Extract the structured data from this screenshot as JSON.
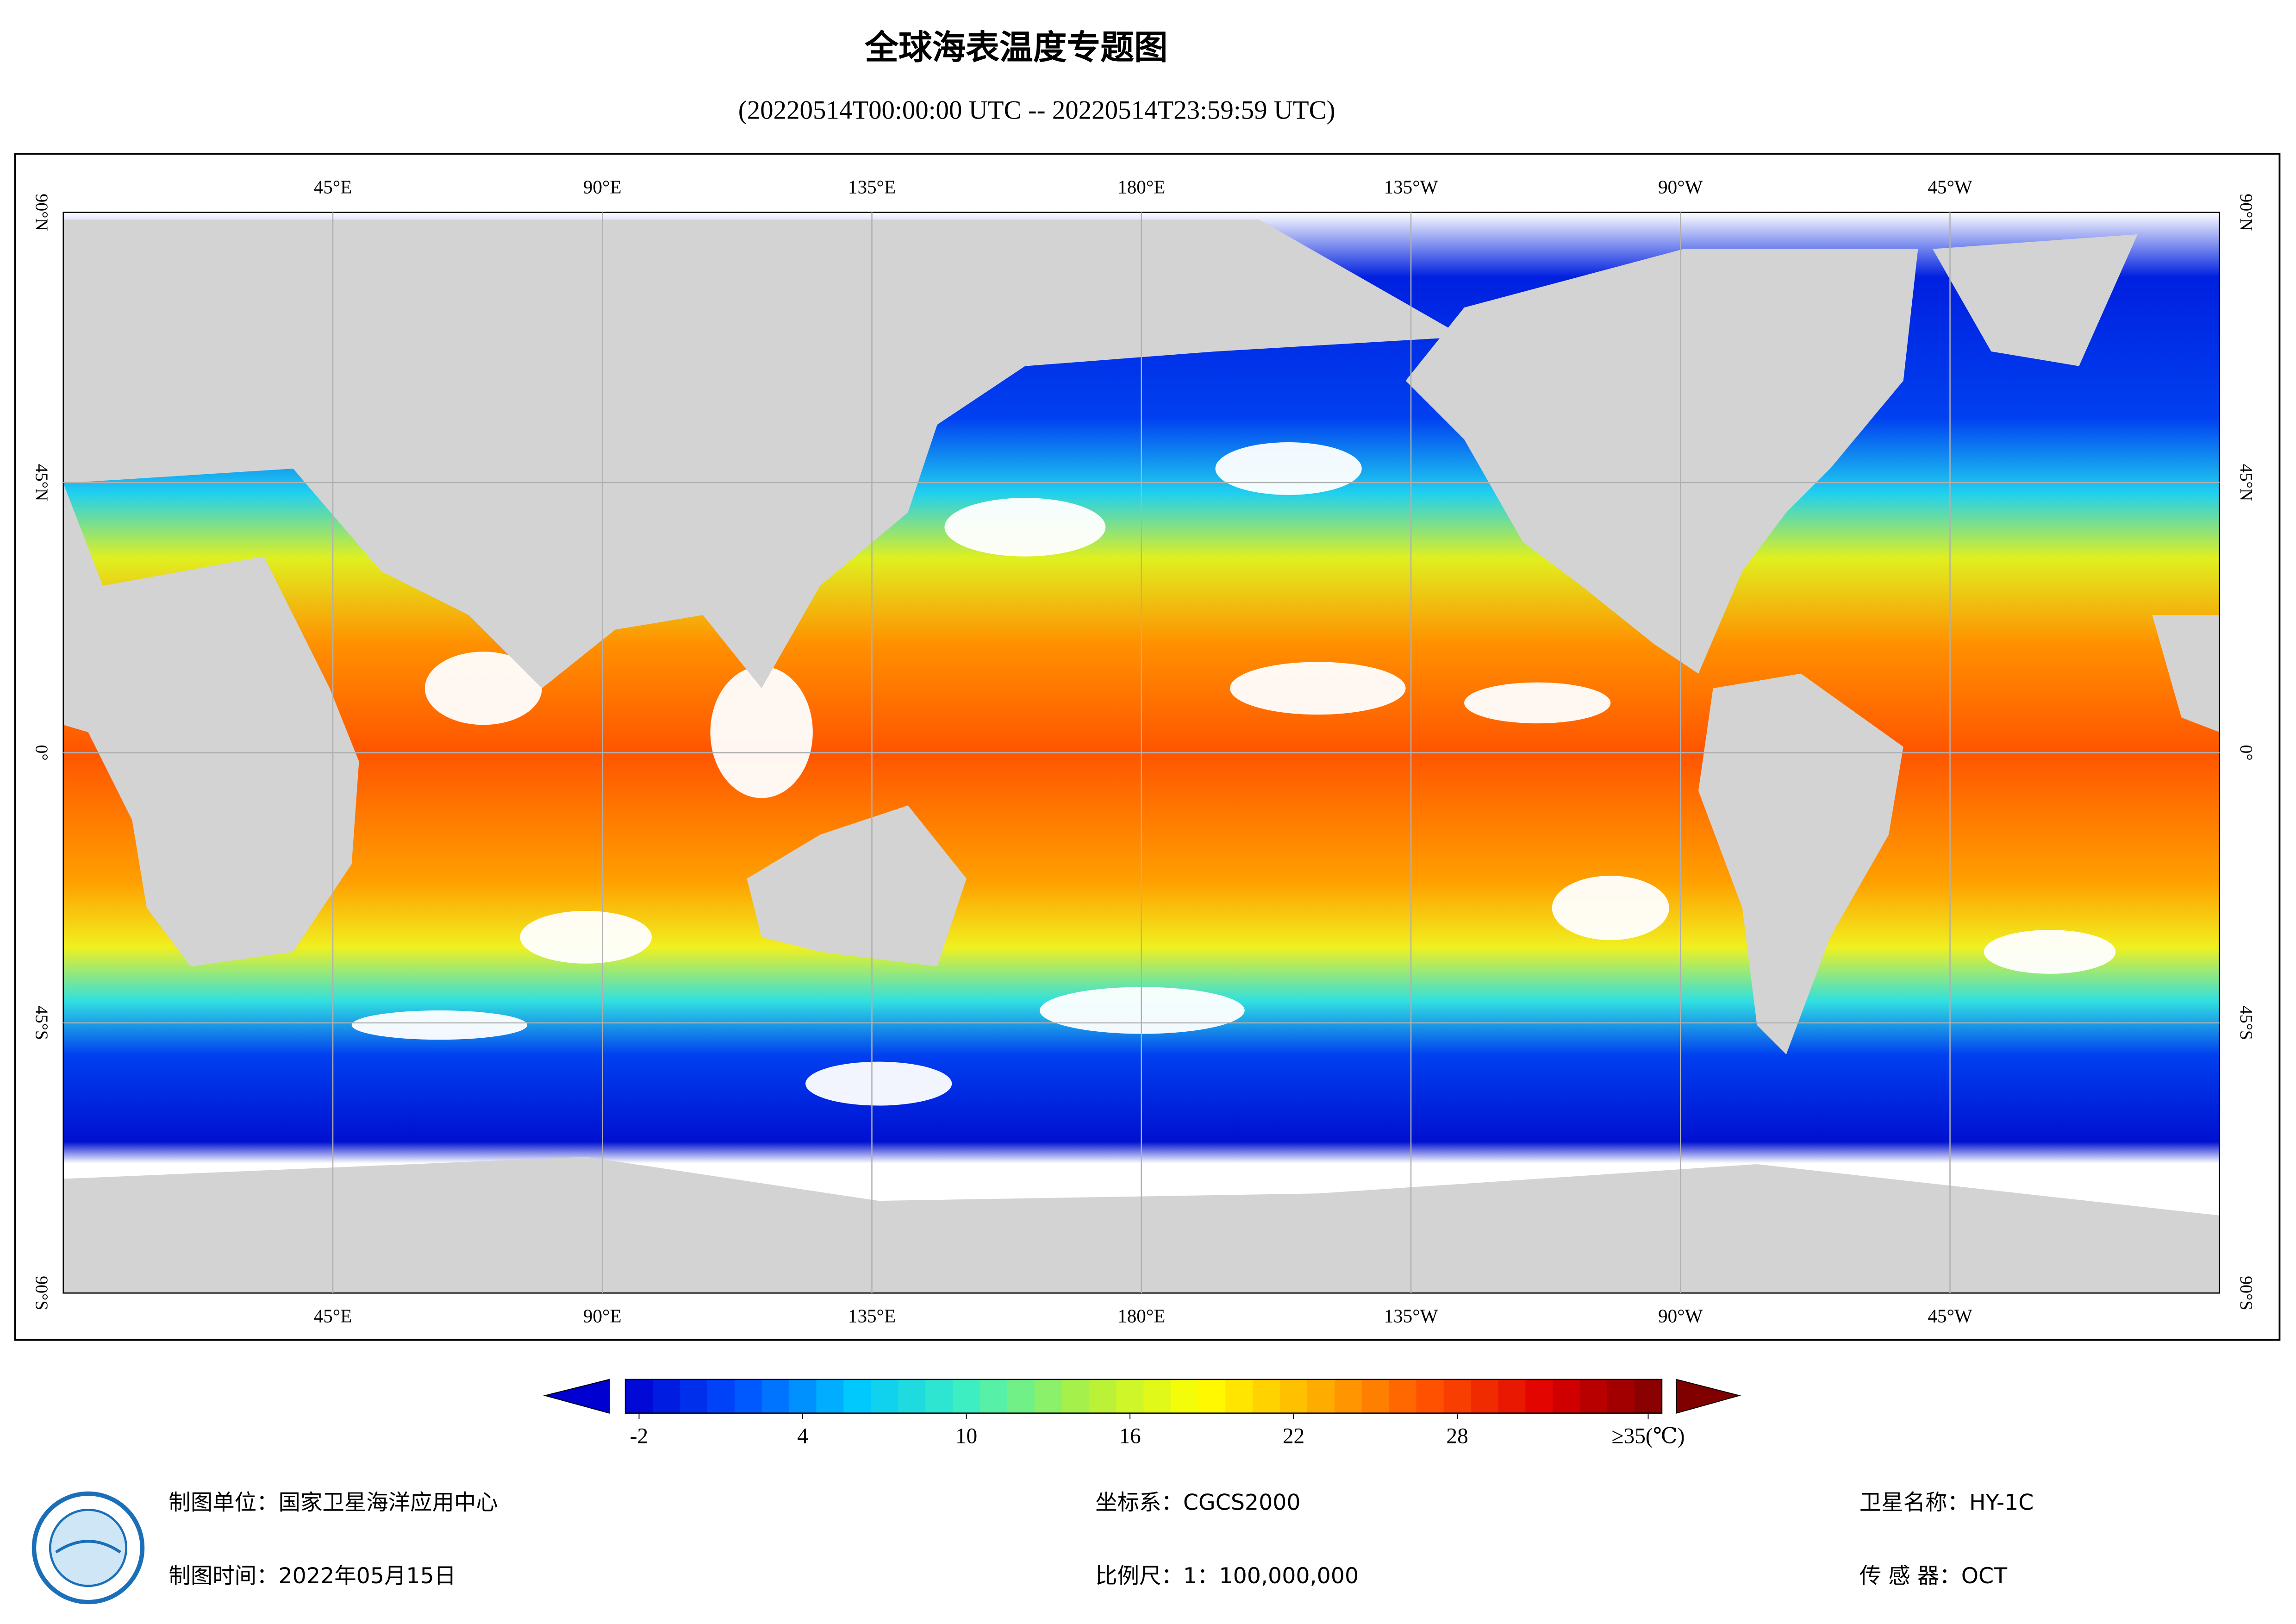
{
  "header": {
    "title": "全球海表温度专题图",
    "subtitle": "(20220514T00:00:00 UTC -- 20220514T23:59:59 UTC)"
  },
  "map": {
    "lon_range": [
      0,
      360
    ],
    "lat_range": [
      -90,
      90
    ],
    "lon_ticks": [
      {
        "value": 45,
        "label": "45°E"
      },
      {
        "value": 90,
        "label": "90°E"
      },
      {
        "value": 135,
        "label": "135°E"
      },
      {
        "value": 180,
        "label": "180°E"
      },
      {
        "value": -135,
        "label": "135°W"
      },
      {
        "value": -90,
        "label": "90°W"
      },
      {
        "value": -45,
        "label": "45°W"
      }
    ],
    "lat_ticks": [
      {
        "value": 90,
        "label": "90°N"
      },
      {
        "value": 45,
        "label": "45°N"
      },
      {
        "value": 0,
        "label": "0°"
      },
      {
        "value": -45,
        "label": "45°S"
      },
      {
        "value": -90,
        "label": "90°S"
      }
    ]
  },
  "colorbar": {
    "range": [
      -2.5,
      35.5
    ],
    "ticks": [
      -2,
      4,
      10,
      16,
      22,
      28,
      {
        "value": 35,
        "label": "≥35(℃)"
      }
    ],
    "colormap": [
      "#0000d0",
      "#0050ff",
      "#00c8ff",
      "#40f0c0",
      "#b0f040",
      "#ffff00",
      "#ffb000",
      "#ff5000",
      "#e00000",
      "#800000"
    ]
  },
  "footer": {
    "unit": "制图单位：国家卫星海洋应用中心",
    "date": "制图时间：2022年05月15日",
    "crs": "坐标系：CGCS2000",
    "scale": "比例尺：1：100,000,000",
    "satellite": "卫星名称：HY-1C",
    "sensor": "传 感 器：OCT"
  }
}
